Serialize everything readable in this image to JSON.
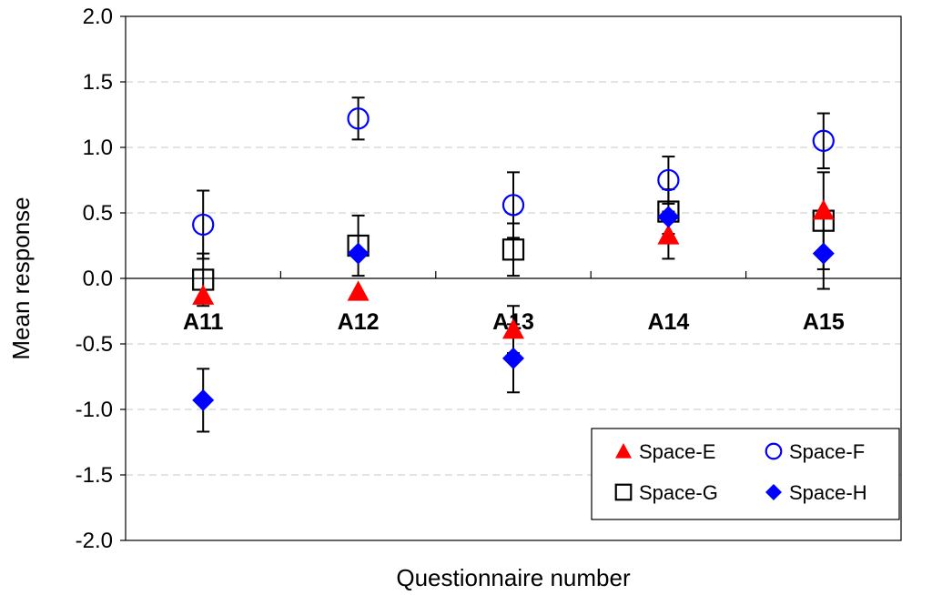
{
  "chart_data": {
    "type": "scatter",
    "title": "",
    "xlabel": "Questionnaire number",
    "ylabel": "Mean response",
    "ylim": [
      -2.0,
      2.0
    ],
    "yticks": [
      "-2.0",
      "-1.5",
      "-1.0",
      "-0.5",
      "0.0",
      "0.5",
      "1.0",
      "1.5",
      "2.0"
    ],
    "categories": [
      "A11",
      "A12",
      "A13",
      "A14",
      "A15"
    ],
    "grid": "horizontal dashed",
    "legend_position": "bottom-right",
    "series": [
      {
        "name": "Space-E",
        "marker": "triangle",
        "color": "#ff0000",
        "values": [
          -0.13,
          -0.1,
          -0.39,
          0.33,
          0.52
        ],
        "errors": [
          null,
          null,
          0.18,
          0.18,
          null
        ]
      },
      {
        "name": "Space-F",
        "marker": "open-circle",
        "color": "#0000ff",
        "values": [
          0.41,
          1.22,
          0.56,
          0.75,
          1.05
        ],
        "errors": [
          0.26,
          0.16,
          0.25,
          0.18,
          0.21
        ]
      },
      {
        "name": "Space-G",
        "marker": "open-square",
        "color": "#000000",
        "values": [
          -0.01,
          0.25,
          0.22,
          0.51,
          0.44
        ],
        "errors": [
          0.2,
          0.23,
          0.2,
          0.17,
          0.37
        ]
      },
      {
        "name": "Space-H",
        "marker": "diamond",
        "color": "#0000ff",
        "values": [
          -0.93,
          0.19,
          -0.61,
          0.47,
          0.19
        ],
        "errors": [
          0.24,
          null,
          0.26,
          null,
          0.27
        ]
      }
    ]
  }
}
